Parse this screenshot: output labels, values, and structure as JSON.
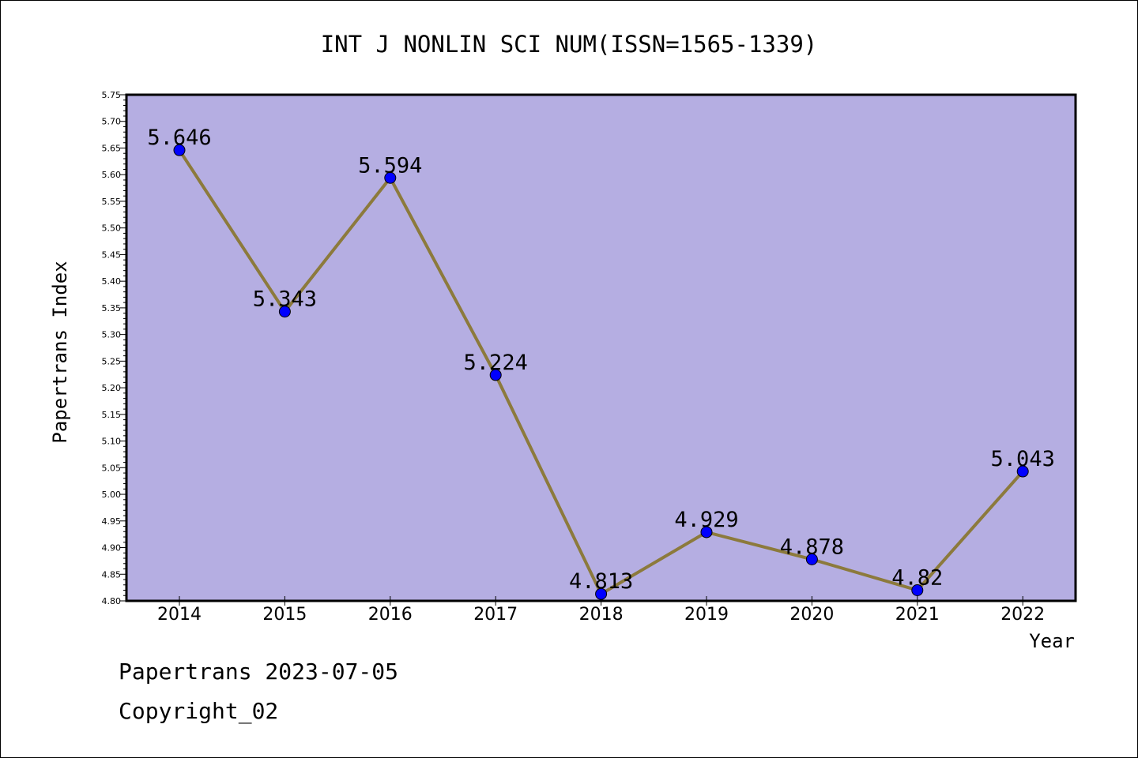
{
  "chart_data": {
    "type": "line",
    "title": "INT J NONLIN SCI NUM(ISSN=1565-1339)",
    "xlabel": "Year",
    "ylabel": "Papertrans Index",
    "categories": [
      "2014",
      "2015",
      "2016",
      "2017",
      "2018",
      "2019",
      "2020",
      "2021",
      "2022"
    ],
    "values": [
      5.646,
      5.343,
      5.594,
      5.224,
      4.813,
      4.929,
      4.878,
      4.82,
      5.043
    ],
    "value_labels": [
      "5.646",
      "5.343",
      "5.594",
      "5.224",
      "4.813",
      "4.929",
      "4.878",
      "4.82",
      "5.043"
    ],
    "ylim": [
      4.8,
      5.75
    ],
    "yticks": [
      "4.80",
      "4.85",
      "4.90",
      "4.95",
      "5.00",
      "5.05",
      "5.10",
      "5.15",
      "5.20",
      "5.25",
      "5.30",
      "5.35",
      "5.40",
      "5.45",
      "5.50",
      "5.55",
      "5.60",
      "5.65",
      "5.70",
      "5.75"
    ],
    "grid": false,
    "colors": {
      "plot_background": "#b5aee2",
      "line": "#8c7a3c",
      "marker": "#0000ff"
    }
  },
  "footer": {
    "line1": "Papertrans 2023-07-05",
    "line2": "Copyright_02"
  }
}
